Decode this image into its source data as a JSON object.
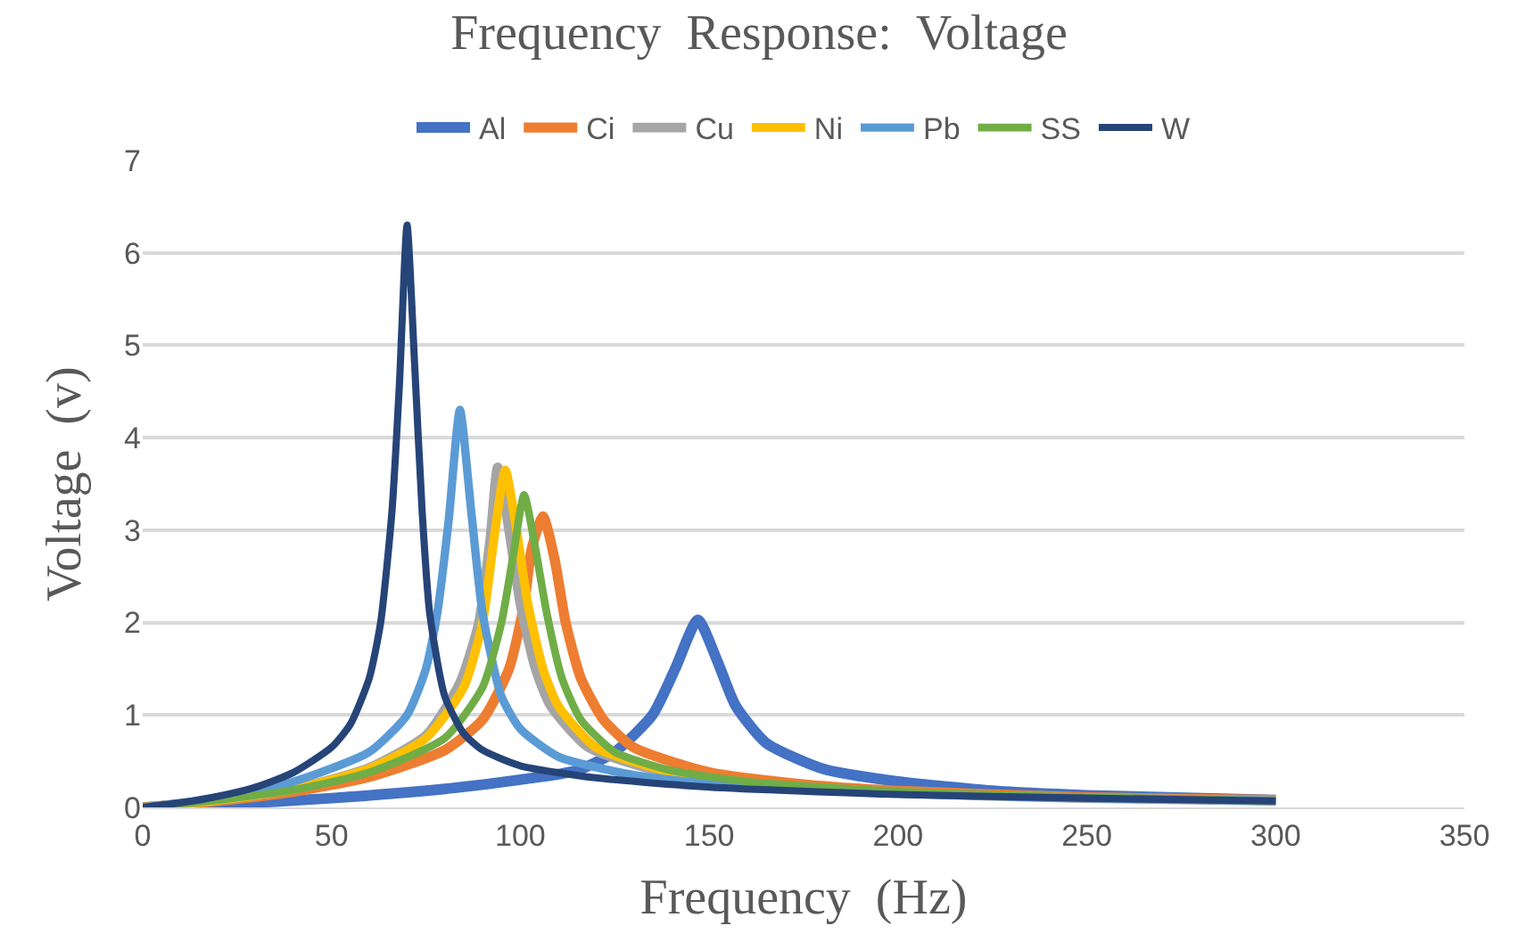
{
  "chart_data": {
    "type": "line",
    "title": "Frequency  Response:  Voltage",
    "xlabel": "Frequency  (Hz)",
    "ylabel": "Voltage  (v)",
    "xlim": [
      0,
      350
    ],
    "xticks": [
      0,
      50,
      100,
      150,
      200,
      250,
      300,
      350
    ],
    "ylim": [
      0,
      7
    ],
    "yticks": [
      0,
      1,
      2,
      3,
      4,
      5,
      6,
      7
    ],
    "grid": "y",
    "legend": "top",
    "marker": "none",
    "line_style": "solid",
    "series": [
      {
        "name": "Al",
        "color": "#4472c4",
        "x": [
          0,
          20,
          50,
          80,
          100,
          115,
          125,
          135,
          141,
          147,
          152,
          157,
          165,
          180,
          200,
          225,
          250,
          300
        ],
        "values": [
          0,
          0.03,
          0.1,
          0.2,
          0.3,
          0.4,
          0.6,
          1.0,
          1.5,
          2.03,
          1.6,
          1.1,
          0.7,
          0.42,
          0.28,
          0.18,
          0.13,
          0.08
        ]
      },
      {
        "name": "Ci",
        "color": "#ed7d31",
        "x": [
          0,
          20,
          40,
          60,
          80,
          90,
          97,
          101,
          103,
          106,
          109,
          112,
          116,
          122,
          130,
          150,
          175,
          200,
          250,
          300
        ],
        "values": [
          0,
          0.07,
          0.17,
          0.33,
          0.62,
          0.95,
          1.5,
          2.2,
          2.8,
          3.15,
          2.7,
          2.0,
          1.4,
          0.95,
          0.65,
          0.38,
          0.25,
          0.18,
          0.11,
          0.08
        ]
      },
      {
        "name": "Cu",
        "color": "#a5a5a5",
        "x": [
          0,
          20,
          40,
          60,
          75,
          84,
          89,
          92,
          94,
          97,
          100,
          104,
          108,
          118,
          138,
          158,
          200,
          250,
          300
        ],
        "values": [
          0,
          0.08,
          0.2,
          0.43,
          0.78,
          1.35,
          2.0,
          2.9,
          3.68,
          3.0,
          2.2,
          1.5,
          1.1,
          0.65,
          0.38,
          0.27,
          0.16,
          0.1,
          0.07
        ]
      },
      {
        "name": "Ni",
        "color": "#ffc000",
        "x": [
          0,
          20,
          40,
          60,
          75,
          85,
          90,
          93,
          96,
          99,
          102,
          106,
          110,
          120,
          140,
          160
        ],
        "values": [
          0,
          0.08,
          0.2,
          0.42,
          0.75,
          1.3,
          2.0,
          2.9,
          3.65,
          3.0,
          2.2,
          1.5,
          1.1,
          0.65,
          0.38,
          0.27
        ]
      },
      {
        "name": "Pb",
        "color": "#5b9bd5",
        "x": [
          0,
          20,
          40,
          60,
          70,
          75,
          78,
          81,
          84,
          87,
          90,
          95,
          100,
          110,
          130,
          150,
          200,
          250,
          300
        ],
        "values": [
          0,
          0.1,
          0.28,
          0.6,
          1.0,
          1.5,
          2.1,
          3.1,
          4.3,
          3.2,
          2.1,
          1.2,
          0.85,
          0.55,
          0.35,
          0.26,
          0.15,
          0.1,
          0.07
        ]
      },
      {
        "name": "SS",
        "color": "#70ad47",
        "x": [
          0,
          20,
          40,
          60,
          80,
          90,
          95,
          98,
          101,
          104,
          107,
          111,
          116,
          125,
          140,
          160,
          200,
          250,
          300
        ],
        "values": [
          0,
          0.08,
          0.19,
          0.38,
          0.75,
          1.3,
          2.0,
          2.7,
          3.38,
          2.8,
          2.1,
          1.4,
          0.95,
          0.6,
          0.4,
          0.28,
          0.17,
          0.11,
          0.07
        ]
      },
      {
        "name": "W",
        "color": "#264478",
        "x": [
          0,
          10,
          20,
          30,
          40,
          50,
          55,
          60,
          63,
          66,
          68,
          70,
          72,
          74,
          76,
          80,
          85,
          90,
          100,
          120,
          150,
          200,
          250,
          300
        ],
        "values": [
          0,
          0.05,
          0.12,
          0.22,
          0.38,
          0.65,
          0.9,
          1.4,
          2.0,
          3.2,
          4.6,
          6.3,
          4.8,
          3.2,
          2.1,
          1.2,
          0.8,
          0.62,
          0.45,
          0.32,
          0.22,
          0.14,
          0.1,
          0.07
        ]
      }
    ]
  }
}
